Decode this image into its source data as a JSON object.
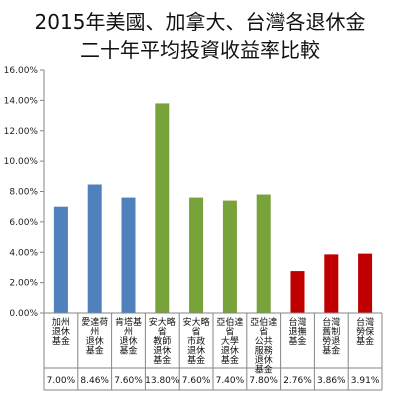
{
  "chart_data": {
    "type": "bar",
    "title_lines": [
      "2015年美國、加拿大、台灣各退休金",
      "二十年平均投資收益率比較"
    ],
    "categories": [
      [
        "加州",
        "退休",
        "基金"
      ],
      [
        "愛達荷",
        "州",
        "退休",
        "基金"
      ],
      [
        "肯塔基",
        "州",
        "退休",
        "基金"
      ],
      [
        "安大略",
        "省",
        "教師",
        "退休",
        "基金"
      ],
      [
        "安大略",
        "省",
        "市政",
        "退休",
        "基金"
      ],
      [
        "亞伯達",
        "省",
        "大學",
        "退休",
        "基金"
      ],
      [
        "亞伯達",
        "省",
        "公共",
        "服務",
        "退休",
        "基金"
      ],
      [
        "台灣",
        "退撫",
        "基金"
      ],
      [
        "台灣",
        "舊制",
        "勞退",
        "基金"
      ],
      [
        "台灣",
        "勞保",
        "基金"
      ]
    ],
    "values": [
      7.0,
      8.46,
      7.6,
      13.8,
      7.6,
      7.4,
      7.8,
      2.76,
      3.86,
      3.91
    ],
    "value_labels": [
      "7.00%",
      "8.46%",
      "7.60%",
      "13.80%",
      "7.60%",
      "7.40%",
      "7.80%",
      "2.76%",
      "3.86%",
      "3.91%"
    ],
    "group": [
      "US",
      "US",
      "US",
      "CA",
      "CA",
      "CA",
      "CA",
      "TW",
      "TW",
      "TW"
    ],
    "colors": {
      "US": "#4f81bd",
      "CA": "#77a33a",
      "TW": "#c00000"
    },
    "ylim": [
      0,
      16
    ],
    "yticks": [
      0,
      2,
      4,
      6,
      8,
      10,
      12,
      14,
      16
    ],
    "ytick_labels": [
      "0.00%",
      "2.00%",
      "4.00%",
      "6.00%",
      "8.00%",
      "10.00%",
      "12.00%",
      "14.00%",
      "16.00%"
    ],
    "xlabel": "",
    "ylabel": "",
    "grid": false,
    "legend": "none"
  }
}
